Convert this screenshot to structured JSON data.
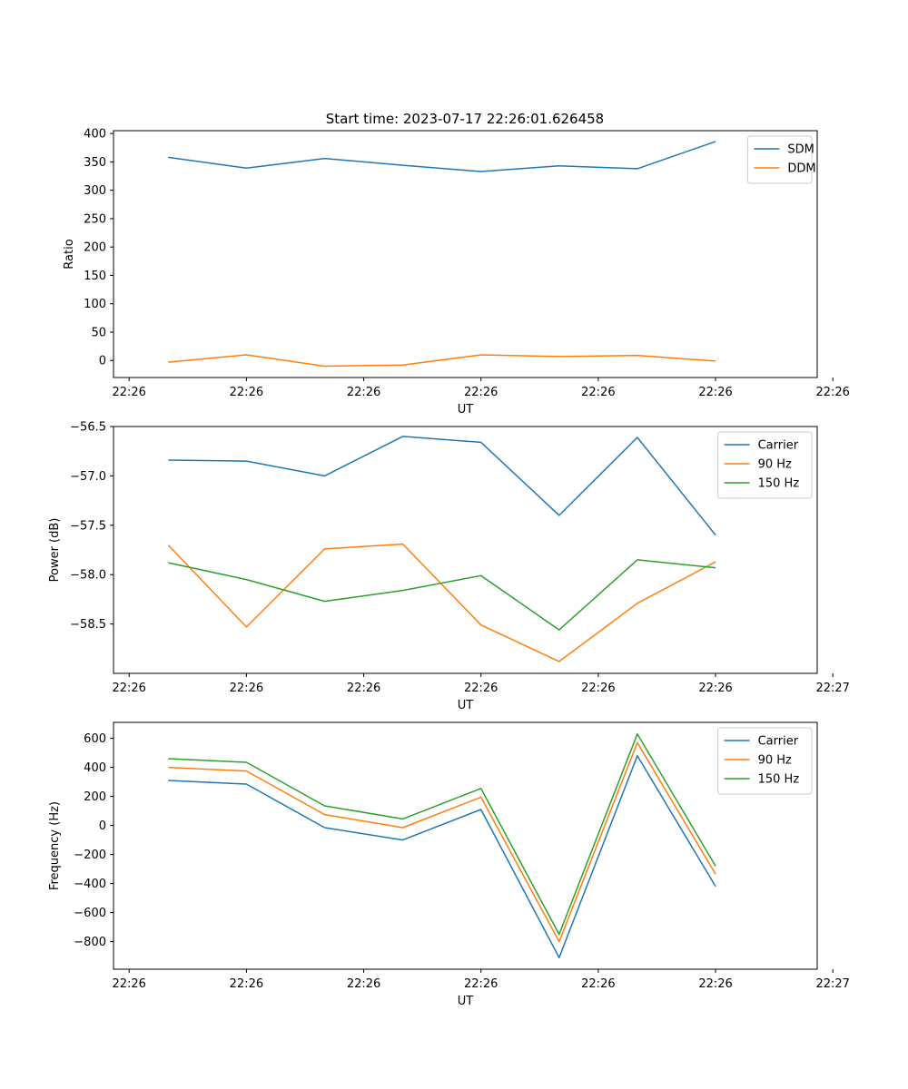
{
  "figure_title": "Start time: 2023-07-17 22:26:01.626458",
  "colors": {
    "blue": "#1f77b4",
    "orange": "#ff7f0e",
    "green": "#2ca02c"
  },
  "chart_data": [
    {
      "type": "line",
      "xlabel": "UT",
      "ylabel": "Ratio",
      "xlim": [
        -0.2,
        8.8
      ],
      "ylim": [
        -30,
        405
      ],
      "x": [
        0.5,
        1.5,
        2.5,
        3.5,
        4.5,
        5.5,
        6.5,
        7.5
      ],
      "x_ticks": [
        0,
        1.5,
        3,
        4.5,
        6,
        7.5,
        9
      ],
      "x_tick_labels": [
        "22:26",
        "22:26",
        "22:26",
        "22:26",
        "22:26",
        "22:26",
        "22:26"
      ],
      "y_ticks": [
        0,
        50,
        100,
        150,
        200,
        250,
        300,
        350,
        400
      ],
      "y_tick_labels": [
        "0",
        "50",
        "100",
        "150",
        "200",
        "250",
        "300",
        "350",
        "400"
      ],
      "legend": "top-right",
      "series": [
        {
          "name": "SDM",
          "color": "#1f77b4",
          "values": [
            358,
            339,
            356,
            344,
            333,
            343,
            338,
            386
          ]
        },
        {
          "name": "DDM",
          "color": "#ff7f0e",
          "values": [
            -3,
            10,
            -10,
            -8,
            10,
            7,
            9,
            -1
          ]
        }
      ]
    },
    {
      "type": "line",
      "xlabel": "UT",
      "ylabel": "Power (dB)",
      "xlim": [
        -0.2,
        8.8
      ],
      "ylim": [
        -59.0,
        -56.5
      ],
      "x": [
        0.5,
        1.5,
        2.5,
        3.5,
        4.5,
        5.5,
        6.5,
        7.5
      ],
      "x_ticks": [
        0,
        1.5,
        3,
        4.5,
        6,
        7.5,
        9
      ],
      "x_tick_labels": [
        "22:26",
        "22:26",
        "22:26",
        "22:26",
        "22:26",
        "22:26",
        "22:27"
      ],
      "y_ticks": [
        -58.5,
        -58.0,
        -57.5,
        -57.0,
        -56.5
      ],
      "y_tick_labels": [
        "−58.5",
        "−58.0",
        "−57.5",
        "−57.0",
        "−56.5"
      ],
      "legend": "top-right",
      "series": [
        {
          "name": "Carrier",
          "color": "#1f77b4",
          "values": [
            -56.84,
            -56.85,
            -57.0,
            -56.6,
            -56.66,
            -57.4,
            -56.61,
            -57.6
          ]
        },
        {
          "name": "90 Hz",
          "color": "#ff7f0e",
          "values": [
            -57.7,
            -58.53,
            -57.74,
            -57.69,
            -58.51,
            -58.88,
            -58.29,
            -57.87
          ]
        },
        {
          "name": "150 Hz",
          "color": "#2ca02c",
          "values": [
            -57.88,
            -58.05,
            -58.27,
            -58.16,
            -58.01,
            -58.56,
            -57.85,
            -57.93
          ]
        }
      ]
    },
    {
      "type": "line",
      "xlabel": "UT",
      "ylabel": "Frequency (Hz)",
      "xlim": [
        -0.2,
        8.8
      ],
      "ylim": [
        -990,
        710
      ],
      "x": [
        0.5,
        1.5,
        2.5,
        3.5,
        4.5,
        5.5,
        6.5,
        7.5
      ],
      "x_ticks": [
        0,
        1.5,
        3,
        4.5,
        6,
        7.5,
        9
      ],
      "x_tick_labels": [
        "22:26",
        "22:26",
        "22:26",
        "22:26",
        "22:26",
        "22:26",
        "22:27"
      ],
      "y_ticks": [
        -800,
        -600,
        -400,
        -200,
        0,
        200,
        400,
        600
      ],
      "y_tick_labels": [
        "−800",
        "−600",
        "−400",
        "−200",
        "0",
        "200",
        "400",
        "600"
      ],
      "legend": "top-right",
      "series": [
        {
          "name": "Carrier",
          "color": "#1f77b4",
          "values": [
            310,
            285,
            -15,
            -100,
            110,
            -910,
            480,
            -420
          ]
        },
        {
          "name": "90 Hz",
          "color": "#ff7f0e",
          "values": [
            400,
            375,
            75,
            -15,
            195,
            -800,
            570,
            -335
          ]
        },
        {
          "name": "150 Hz",
          "color": "#2ca02c",
          "values": [
            460,
            435,
            135,
            45,
            255,
            -750,
            630,
            -280
          ]
        }
      ]
    }
  ]
}
